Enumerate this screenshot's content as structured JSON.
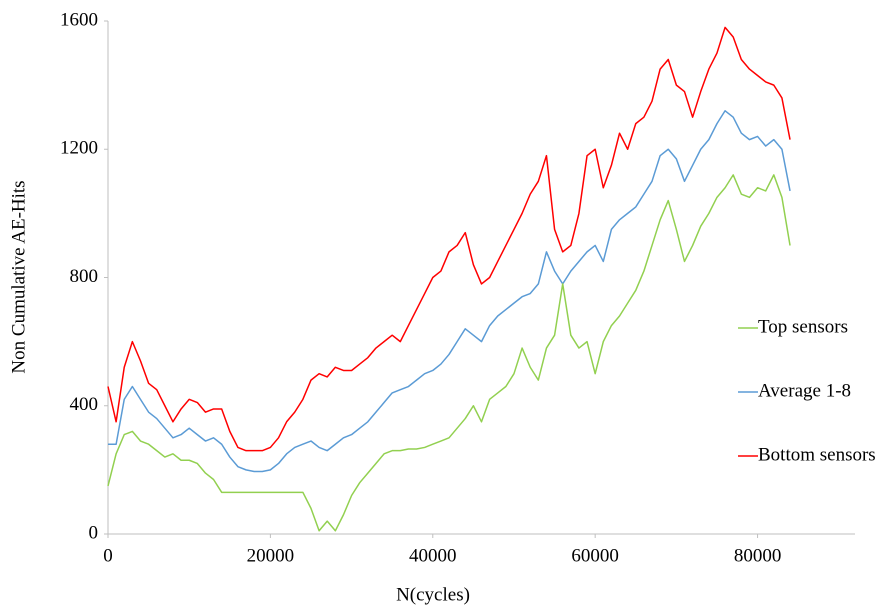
{
  "chart_data": {
    "type": "line",
    "x_label": "N(cycles)",
    "y_label": "Non Cumulative AE-Hits",
    "xlim": [
      0,
      92000
    ],
    "xticks": [
      0,
      20000,
      40000,
      60000,
      80000
    ],
    "ylim": [
      0,
      1600
    ],
    "yticks": [
      0,
      400,
      800,
      1200,
      1600
    ],
    "grid": false,
    "legend": "right",
    "x": [
      0,
      1000,
      2000,
      3000,
      4000,
      5000,
      6000,
      7000,
      8000,
      9000,
      10000,
      11000,
      12000,
      13000,
      14000,
      15000,
      16000,
      17000,
      18000,
      19000,
      20000,
      21000,
      22000,
      23000,
      24000,
      25000,
      26000,
      27000,
      28000,
      29000,
      30000,
      31000,
      32000,
      33000,
      34000,
      35000,
      36000,
      37000,
      38000,
      39000,
      40000,
      41000,
      42000,
      43000,
      44000,
      45000,
      46000,
      47000,
      48000,
      49000,
      50000,
      51000,
      52000,
      53000,
      54000,
      55000,
      56000,
      57000,
      58000,
      59000,
      60000,
      61000,
      62000,
      63000,
      64000,
      65000,
      66000,
      67000,
      68000,
      69000,
      70000,
      71000,
      72000,
      73000,
      74000,
      75000,
      76000,
      77000,
      78000,
      79000,
      80000,
      81000,
      82000,
      83000,
      84000
    ],
    "series": [
      {
        "name": "Top sensors",
        "color": "#92d050",
        "values": [
          150,
          250,
          310,
          320,
          290,
          280,
          260,
          240,
          250,
          230,
          230,
          220,
          190,
          170,
          130,
          130,
          130,
          130,
          130,
          130,
          130,
          130,
          130,
          130,
          130,
          80,
          10,
          40,
          10,
          60,
          120,
          160,
          190,
          220,
          250,
          260,
          260,
          265,
          265,
          270,
          280,
          290,
          300,
          330,
          360,
          400,
          350,
          420,
          440,
          460,
          500,
          580,
          520,
          480,
          580,
          620,
          780,
          620,
          580,
          600,
          500,
          600,
          650,
          680,
          720,
          760,
          820,
          900,
          980,
          1040,
          950,
          850,
          900,
          960,
          1000,
          1050,
          1080,
          1120,
          1060,
          1050,
          1080,
          1070,
          1120,
          1050,
          900
        ]
      },
      {
        "name": "Average 1-8",
        "color": "#5b9bd5",
        "values": [
          280,
          280,
          420,
          460,
          420,
          380,
          360,
          330,
          300,
          310,
          330,
          310,
          290,
          300,
          280,
          240,
          210,
          200,
          195,
          195,
          200,
          220,
          250,
          270,
          280,
          290,
          270,
          260,
          280,
          300,
          310,
          330,
          350,
          380,
          410,
          440,
          450,
          460,
          480,
          500,
          510,
          530,
          560,
          600,
          640,
          620,
          600,
          650,
          680,
          700,
          720,
          740,
          750,
          780,
          880,
          820,
          780,
          820,
          850,
          880,
          900,
          850,
          950,
          980,
          1000,
          1020,
          1060,
          1100,
          1180,
          1200,
          1170,
          1100,
          1150,
          1200,
          1230,
          1280,
          1320,
          1300,
          1250,
          1230,
          1240,
          1210,
          1230,
          1200,
          1070
        ]
      },
      {
        "name": "Bottom sensors",
        "color": "#ff0000",
        "values": [
          460,
          350,
          520,
          600,
          540,
          470,
          450,
          400,
          350,
          390,
          420,
          410,
          380,
          390,
          390,
          320,
          270,
          260,
          260,
          260,
          270,
          300,
          350,
          380,
          420,
          480,
          500,
          490,
          520,
          510,
          510,
          530,
          550,
          580,
          600,
          620,
          600,
          650,
          700,
          750,
          800,
          820,
          880,
          900,
          940,
          840,
          780,
          800,
          850,
          900,
          950,
          1000,
          1060,
          1100,
          1180,
          950,
          880,
          900,
          1000,
          1180,
          1200,
          1080,
          1150,
          1250,
          1200,
          1280,
          1300,
          1350,
          1450,
          1480,
          1400,
          1380,
          1300,
          1380,
          1450,
          1500,
          1580,
          1550,
          1480,
          1450,
          1430,
          1410,
          1400,
          1360,
          1230
        ]
      }
    ]
  }
}
